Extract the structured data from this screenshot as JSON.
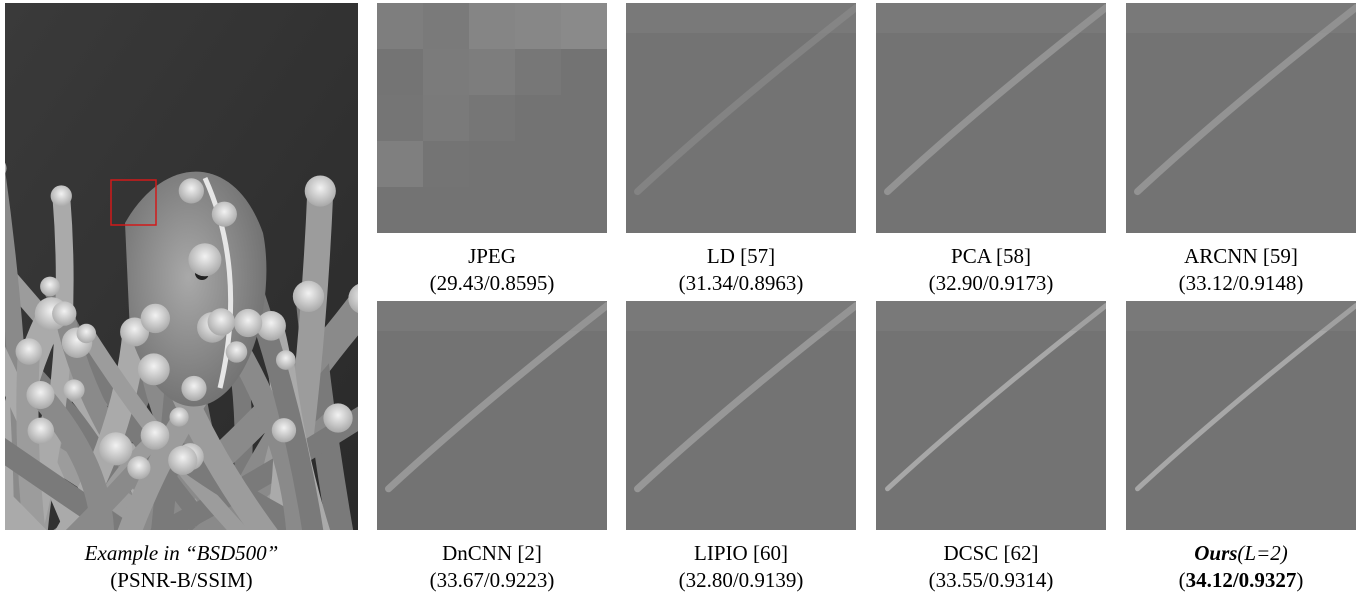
{
  "overview": {
    "caption_line1": "Example in “BSD500”",
    "caption_line2": "(PSNR-B/SSIM)",
    "image_subject": "sea anemone with clownfish (grayscale)",
    "highlight_color": "#d11a1a"
  },
  "crops": [
    {
      "method": "JPEG",
      "metrics": "(29.43/0.8595)",
      "artifact": "blocky"
    },
    {
      "method": "LD [57]",
      "metrics": "(31.34/0.8963)",
      "artifact": "blurred"
    },
    {
      "method": "PCA [58]",
      "metrics": "(32.90/0.9173)",
      "artifact": "mild"
    },
    {
      "method": "ARCNN [59]",
      "metrics": "(33.12/0.9148)",
      "artifact": "mild"
    },
    {
      "method": "DnCNN [2]",
      "metrics": "(33.67/0.9223)",
      "artifact": "smooth"
    },
    {
      "method": "LIPIO [60]",
      "metrics": "(32.80/0.9139)",
      "artifact": "smooth"
    },
    {
      "method": "DCSC [62]",
      "metrics": "(33.55/0.9314)",
      "artifact": "sharp"
    },
    {
      "method_main": "Ours",
      "method_suffix": "(L=2)",
      "metrics_open": "(",
      "metrics_value": "34.12/0.9327",
      "metrics_close": ")",
      "artifact": "sharp"
    }
  ]
}
